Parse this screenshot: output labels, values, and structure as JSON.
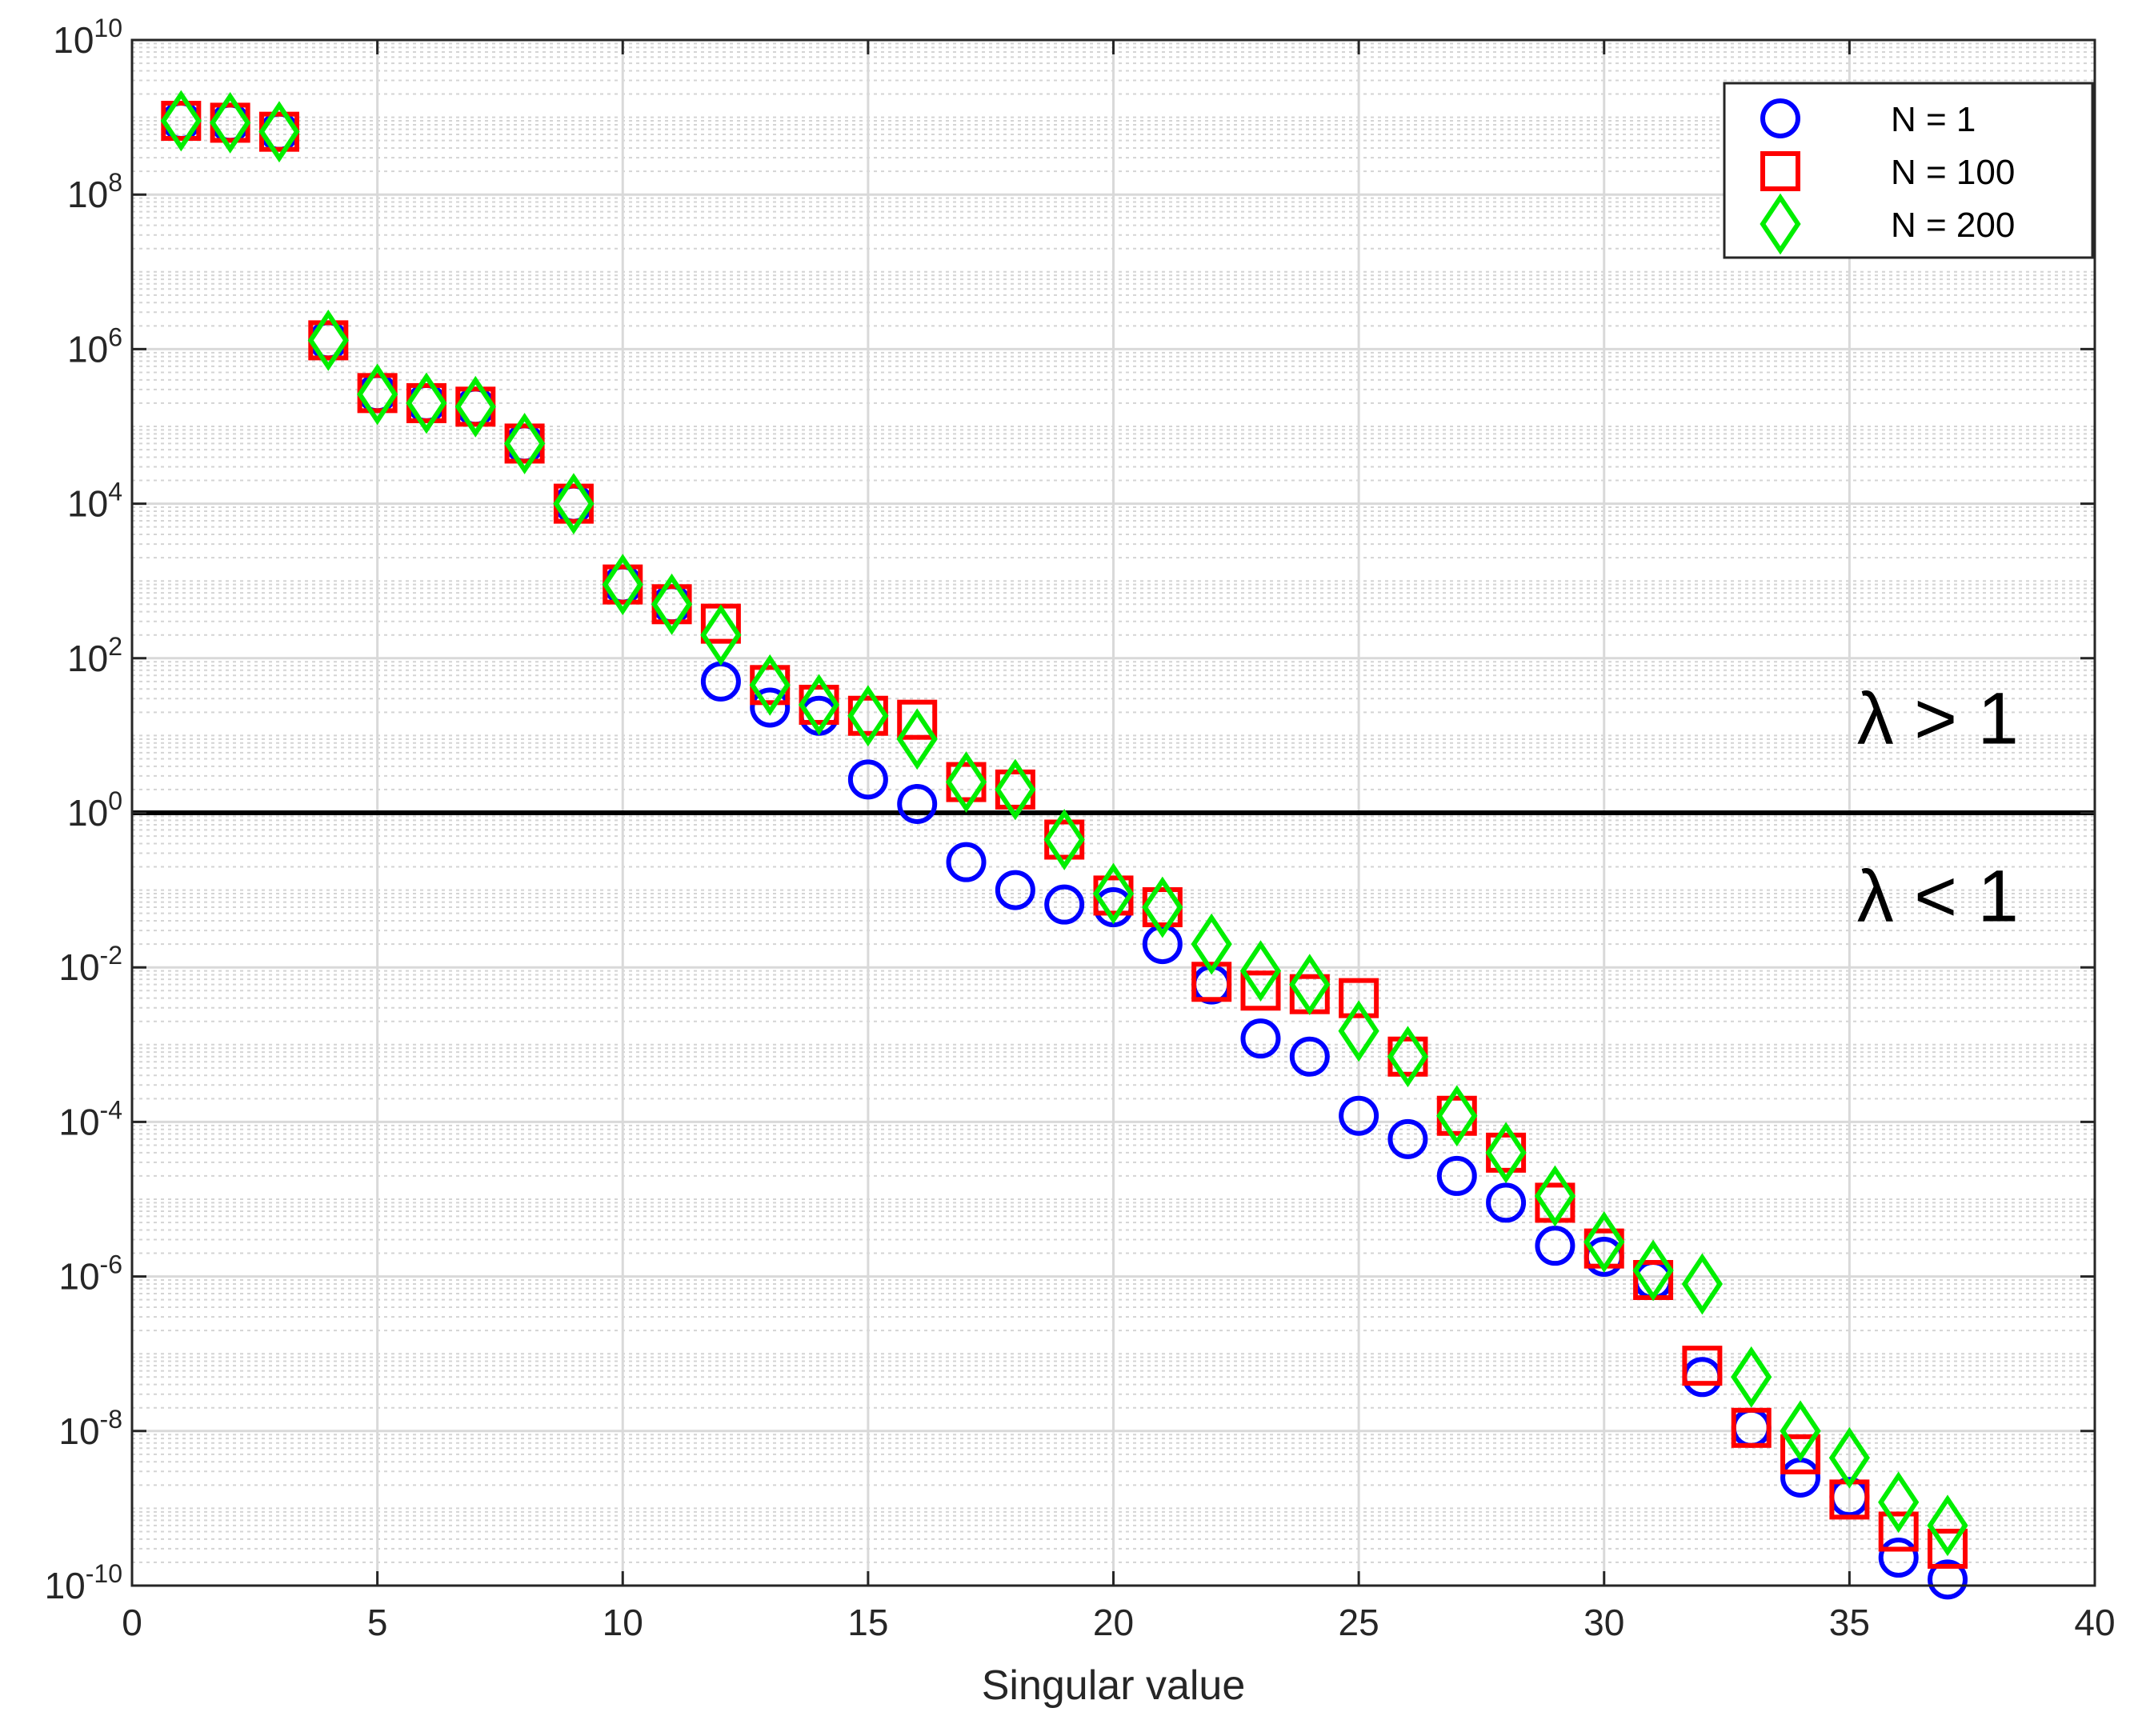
{
  "chart_data": {
    "type": "scatter",
    "x_scale": "linear",
    "y_scale": "log",
    "xlim": [
      0,
      40
    ],
    "ylim_exponent": [
      -10,
      10
    ],
    "xticks": [
      "0",
      "5",
      "10",
      "15",
      "20",
      "25",
      "30",
      "35",
      "40"
    ],
    "ytick_base": "10",
    "ytick_exponents": [
      "-10",
      "-8",
      "-6",
      "-4",
      "-2",
      "0",
      "2",
      "4",
      "6",
      "8",
      "10"
    ],
    "xlabel": "Singular value",
    "ylabel": "",
    "grid": true,
    "minor_grid": true,
    "legend_position": "top-right",
    "reference_line_y": 1,
    "annotations": [
      {
        "text": "λ > 1",
        "x": 36.8,
        "y": 10
      },
      {
        "text": "λ < 1",
        "x": 36.8,
        "y": 0.05
      }
    ],
    "series": [
      {
        "name": "N = 1",
        "marker": "circle",
        "color": "#0000FF",
        "x": [
          1,
          2,
          3,
          4,
          5,
          6,
          7,
          8,
          9,
          10,
          11,
          12,
          13,
          14,
          15,
          16,
          17,
          18,
          19,
          20,
          21,
          22,
          23,
          24,
          25,
          26,
          27,
          28,
          29,
          30,
          31,
          32,
          33,
          34,
          35,
          36,
          37
        ],
        "y": [
          900000000.0,
          850000000.0,
          650000000.0,
          1300000.0,
          270000.0,
          200000.0,
          180000.0,
          60000.0,
          10000.0,
          900,
          500,
          50,
          23,
          18,
          2.7,
          1.3,
          0.23,
          0.1,
          0.065,
          0.06,
          0.02,
          0.006,
          0.0012,
          0.0007,
          0.00012,
          6e-05,
          2e-05,
          9e-06,
          2.5e-06,
          1.8e-06,
          9e-07,
          5e-08,
          1.1e-08,
          2.5e-09,
          1.4e-09,
          2.3e-10,
          1.2e-10
        ]
      },
      {
        "name": "N = 100",
        "marker": "square",
        "color": "#FF0000",
        "x": [
          1,
          2,
          3,
          4,
          5,
          6,
          7,
          8,
          9,
          10,
          11,
          12,
          13,
          14,
          15,
          16,
          17,
          18,
          19,
          20,
          21,
          22,
          23,
          24,
          25,
          26,
          27,
          28,
          29,
          30,
          31,
          32,
          33,
          34,
          35,
          36,
          37
        ],
        "y": [
          900000000.0,
          850000000.0,
          650000000.0,
          1300000.0,
          270000.0,
          200000.0,
          180000.0,
          60000.0,
          10000.0,
          900,
          500,
          280,
          45,
          25,
          18,
          16,
          2.5,
          2,
          0.45,
          0.085,
          0.06,
          0.0065,
          0.005,
          0.0045,
          0.004,
          0.0007,
          0.00012,
          4e-05,
          9e-06,
          2.3e-06,
          9e-07,
          7e-08,
          1.1e-08,
          5e-09,
          1.3e-09,
          5e-10,
          3e-10
        ]
      },
      {
        "name": "N = 200",
        "marker": "diamond",
        "color": "#00EE00",
        "x": [
          1,
          2,
          3,
          4,
          5,
          6,
          7,
          8,
          9,
          10,
          11,
          12,
          13,
          14,
          15,
          16,
          17,
          18,
          19,
          20,
          21,
          22,
          23,
          24,
          25,
          26,
          27,
          28,
          29,
          30,
          31,
          32,
          33,
          34,
          35,
          36,
          37
        ],
        "y": [
          900000000.0,
          850000000.0,
          650000000.0,
          1300000.0,
          260000.0,
          200000.0,
          180000.0,
          60000.0,
          10000.0,
          900,
          500,
          200,
          45,
          25,
          18,
          9,
          2.5,
          2,
          0.45,
          0.09,
          0.06,
          0.02,
          0.009,
          0.006,
          0.0015,
          0.0007,
          0.00012,
          4e-05,
          1.1e-05,
          2.8e-06,
          1.2e-06,
          8e-07,
          5e-08,
          1e-08,
          4.5e-09,
          1.2e-09,
          6e-10
        ]
      }
    ]
  }
}
